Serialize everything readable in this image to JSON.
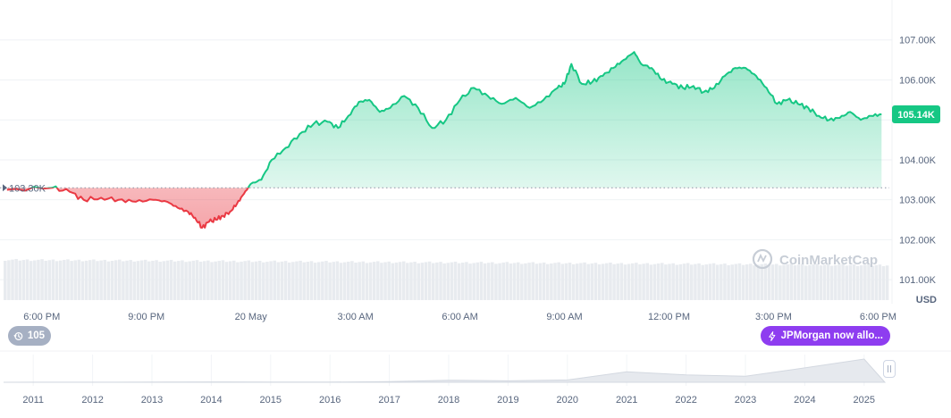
{
  "chart_data": {
    "type": "line",
    "currency_label": "USD",
    "baseline": 103300,
    "baseline_label": "103.30K",
    "current_value": 105140,
    "current_label": "105.14K",
    "ylim": [
      100400,
      108000
    ],
    "y_ticks": [
      {
        "value": 101000,
        "label": "101.00K"
      },
      {
        "value": 102000,
        "label": "102.00K"
      },
      {
        "value": 103000,
        "label": "103.00K"
      },
      {
        "value": 104000,
        "label": "104.00K"
      },
      {
        "value": 105000,
        "label": "105.00K"
      },
      {
        "value": 106000,
        "label": "106.00K"
      },
      {
        "value": 107000,
        "label": "107.00K"
      }
    ],
    "xlim_hours": [
      -1.2,
      24.4
    ],
    "x_ticks": [
      {
        "value": 0,
        "label": "6:00 PM"
      },
      {
        "value": 3,
        "label": "9:00 PM"
      },
      {
        "value": 6,
        "label": "20 May"
      },
      {
        "value": 9,
        "label": "3:00 AM"
      },
      {
        "value": 12,
        "label": "6:00 AM"
      },
      {
        "value": 15,
        "label": "9:00 AM"
      },
      {
        "value": 18,
        "label": "12:00 PM"
      },
      {
        "value": 21,
        "label": "3:00 PM"
      },
      {
        "value": 24,
        "label": "6:00 PM"
      }
    ],
    "series": [
      {
        "x": [
          -1.0,
          0.3,
          0.8,
          1.2,
          1.7,
          2.2,
          2.7,
          3.2,
          3.6,
          3.9,
          4.2,
          4.4,
          4.6,
          4.8,
          5.0,
          5.2,
          5.4,
          5.6,
          5.8,
          6.0,
          6.3,
          6.6,
          7.0,
          7.4,
          7.8,
          8.2,
          8.5,
          8.8,
          9.1,
          9.4,
          9.7,
          10.0,
          10.4,
          10.8,
          11.2,
          11.6,
          12.0,
          12.4,
          12.8,
          13.2,
          13.6,
          14.0,
          14.4,
          14.8,
          15.0,
          15.2,
          15.5,
          15.8,
          16.1,
          16.4,
          16.7,
          17.0,
          17.2,
          17.5,
          17.8,
          18.1,
          18.4,
          18.7,
          19.0,
          19.3,
          19.6,
          19.9,
          20.2,
          20.5,
          20.8,
          21.1,
          21.4,
          21.7,
          22.0,
          22.3,
          22.6,
          22.9,
          23.2,
          23.5,
          23.8,
          24.1
        ],
        "values": [
          103250,
          103300,
          103200,
          103000,
          103050,
          103000,
          102950,
          103000,
          102950,
          102800,
          102700,
          102550,
          102300,
          102450,
          102500,
          102600,
          102700,
          102900,
          103150,
          103400,
          103500,
          104000,
          104300,
          104650,
          104900,
          104950,
          104800,
          105100,
          105450,
          105500,
          105200,
          105300,
          105600,
          105300,
          104800,
          105000,
          105500,
          105800,
          105600,
          105400,
          105550,
          105300,
          105500,
          105800,
          105900,
          106400,
          105900,
          105950,
          106100,
          106300,
          106500,
          106700,
          106400,
          106300,
          106000,
          105900,
          105800,
          105850,
          105700,
          105800,
          106100,
          106300,
          106300,
          106100,
          105800,
          105400,
          105500,
          105400,
          105300,
          105100,
          105000,
          105050,
          105200,
          105000,
          105100,
          105140
        ]
      }
    ],
    "volume_bars": 240,
    "navigator": {
      "years": [
        "2011",
        "2012",
        "2013",
        "2014",
        "2015",
        "2016",
        "2017",
        "2018",
        "2019",
        "2020",
        "2021",
        "2022",
        "2023",
        "2024",
        "2025"
      ],
      "values": [
        0.3,
        0.5,
        1.0,
        1.5,
        0.6,
        0.9,
        3.0,
        9.0,
        6.0,
        10.0,
        45.0,
        32.0,
        26.0,
        62.0,
        100.0
      ]
    }
  },
  "watermark": "CoinMarketCap",
  "events_badge": {
    "icon": "history-clock-icon",
    "count": "105"
  },
  "news_badge": {
    "icon": "lightning-bolt-icon",
    "label": "JPMorgan now allo..."
  },
  "colors": {
    "up": "#16c784",
    "down": "#ea3943",
    "axis_text": "#58667e",
    "grid": "#eff2f5",
    "events_badge": "#a6b0c3",
    "news_badge": "#8e3df0"
  }
}
